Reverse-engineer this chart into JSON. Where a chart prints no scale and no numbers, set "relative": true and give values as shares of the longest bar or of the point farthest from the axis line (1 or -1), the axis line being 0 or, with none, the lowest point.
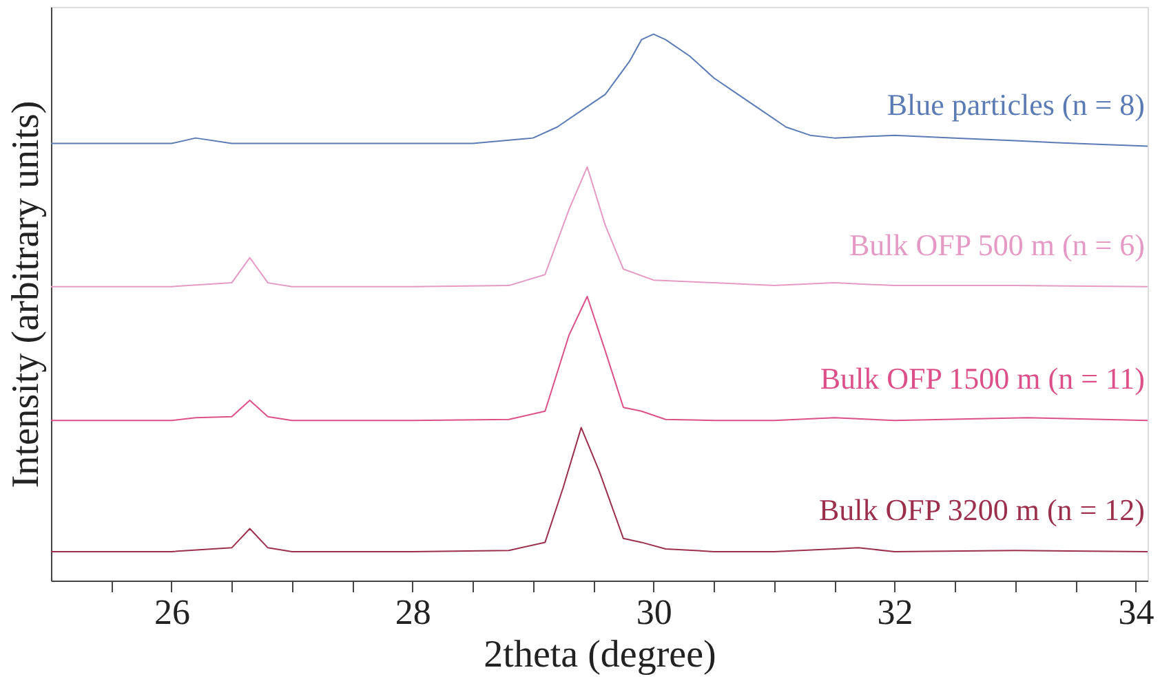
{
  "chart_data": {
    "type": "line",
    "relative": true,
    "xlabel": "2theta (degree)",
    "ylabel": "Intensity (arbitrary units)",
    "xlim": [
      25,
      34.1
    ],
    "xticks": [
      {
        "value": 25.5,
        "label": null
      },
      26,
      {
        "value": 26.5,
        "label": null
      },
      {
        "value": 27,
        "label": null
      },
      {
        "value": 27.5,
        "label": null
      },
      28,
      {
        "value": 28.5,
        "label": null
      },
      {
        "value": 29,
        "label": null
      },
      {
        "value": 29.5,
        "label": null
      },
      30,
      {
        "value": 30.5,
        "label": null
      },
      {
        "value": 31,
        "label": null
      },
      {
        "value": 31.5,
        "label": null
      },
      32,
      {
        "value": 32.5,
        "label": null
      },
      {
        "value": 33,
        "label": null
      },
      {
        "value": 33.5,
        "label": null
      },
      34
    ],
    "grid": false,
    "legend": false,
    "marker": "none",
    "line_style": "solid",
    "series": [
      {
        "name": "Blue particles (n = 8)",
        "color": "#5b7bb5",
        "x": [
          25,
          25.5,
          26,
          26.2,
          26.5,
          27,
          27.5,
          28,
          28.5,
          29,
          29.2,
          29.4,
          29.6,
          29.8,
          29.9,
          30.0,
          30.1,
          30.3,
          30.5,
          30.7,
          30.9,
          31.1,
          31.3,
          31.5,
          32,
          32.5,
          33,
          33.5,
          34.1
        ],
        "values": [
          0.8,
          0.8,
          0.8,
          0.81,
          0.8,
          0.8,
          0.8,
          0.8,
          0.8,
          0.81,
          0.83,
          0.86,
          0.89,
          0.95,
          0.99,
          1.0,
          0.99,
          0.96,
          0.92,
          0.89,
          0.86,
          0.83,
          0.815,
          0.81,
          0.815,
          0.81,
          0.805,
          0.8,
          0.795
        ]
      },
      {
        "name": "Bulk OFP 500 m (n = 6)",
        "color": "#e49ac4",
        "x": [
          25,
          26,
          26.5,
          26.65,
          26.8,
          27,
          28,
          28.8,
          29.1,
          29.3,
          29.45,
          29.6,
          29.75,
          30,
          30.5,
          31,
          31.5,
          32,
          33,
          34.1
        ],
        "values": [
          0.538,
          0.538,
          0.545,
          0.591,
          0.545,
          0.538,
          0.538,
          0.54,
          0.56,
          0.68,
          0.757,
          0.65,
          0.57,
          0.55,
          0.545,
          0.54,
          0.545,
          0.54,
          0.54,
          0.538
        ]
      },
      {
        "name": "Bulk OFP 1500 m (n = 11)",
        "color": "#dc4f88",
        "x": [
          25,
          26,
          26.2,
          26.5,
          26.65,
          26.8,
          27,
          28,
          28.8,
          29.1,
          29.3,
          29.45,
          29.6,
          29.75,
          29.9,
          30.1,
          30.5,
          31,
          31.5,
          32,
          33.1,
          34.1
        ],
        "values": [
          0.293,
          0.293,
          0.298,
          0.3,
          0.33,
          0.3,
          0.293,
          0.293,
          0.295,
          0.31,
          0.45,
          0.52,
          0.42,
          0.317,
          0.31,
          0.295,
          0.293,
          0.293,
          0.298,
          0.293,
          0.298,
          0.293
        ]
      },
      {
        "name": "Bulk OFP 3200 m (n = 12)",
        "color": "#9b2f4c",
        "x": [
          25,
          26,
          26.5,
          26.65,
          26.8,
          27,
          28,
          28.8,
          29.1,
          29.25,
          29.4,
          29.55,
          29.75,
          29.9,
          30.1,
          30.5,
          31,
          31.5,
          31.7,
          32,
          33,
          34.1
        ],
        "values": [
          0.053,
          0.053,
          0.06,
          0.095,
          0.06,
          0.053,
          0.053,
          0.055,
          0.07,
          0.17,
          0.28,
          0.2,
          0.077,
          0.07,
          0.058,
          0.053,
          0.053,
          0.058,
          0.06,
          0.053,
          0.055,
          0.053
        ]
      }
    ]
  }
}
